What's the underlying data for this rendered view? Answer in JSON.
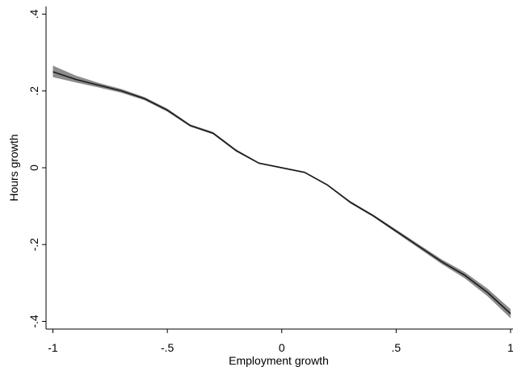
{
  "chart_data": {
    "type": "line",
    "x_label": "Employment growth",
    "y_label": "Hours growth",
    "x": [
      -1,
      -0.9,
      -0.8,
      -0.7,
      -0.6,
      -0.5,
      -0.4,
      -0.3,
      -0.2,
      -0.1,
      0,
      0.1,
      0.2,
      0.3,
      0.4,
      0.5,
      0.6,
      0.7,
      0.8,
      0.9,
      1
    ],
    "series": [
      {
        "color": "#1a1a1a",
        "values": [
          0.25,
          0.23,
          0.215,
          0.2,
          0.18,
          0.15,
          0.11,
          0.09,
          0.045,
          0.012,
          0,
          -0.012,
          -0.045,
          -0.09,
          -0.125,
          -0.165,
          -0.205,
          -0.245,
          -0.28,
          -0.325,
          -0.38
        ]
      }
    ],
    "band": {
      "color": "#8c8c8c",
      "lower": [
        0.236,
        0.222,
        0.209,
        0.195,
        0.176,
        0.146,
        0.107,
        0.087,
        0.042,
        0.01,
        -0.002,
        -0.014,
        -0.047,
        -0.093,
        -0.128,
        -0.169,
        -0.21,
        -0.251,
        -0.288,
        -0.335,
        -0.392
      ],
      "upper": [
        0.266,
        0.24,
        0.221,
        0.205,
        0.184,
        0.154,
        0.113,
        0.093,
        0.048,
        0.014,
        0.002,
        -0.01,
        -0.043,
        -0.087,
        -0.122,
        -0.161,
        -0.2,
        -0.239,
        -0.272,
        -0.315,
        -0.368
      ]
    },
    "xlim": [
      -1.03,
      1
    ],
    "ylim": [
      -0.42,
      0.42
    ],
    "xticks": [
      {
        "value": -1,
        "label": "-1"
      },
      {
        "value": -0.5,
        "label": "-.5"
      },
      0,
      {
        "value": 0.5,
        "label": ".5"
      },
      1
    ],
    "yticks": [
      {
        "value": -0.4,
        "label": "-.4"
      },
      {
        "value": -0.2,
        "label": "-.2"
      },
      0,
      {
        "value": 0.2,
        "label": ".2"
      },
      {
        "value": 0.4,
        "label": ".4"
      }
    ],
    "grid": false
  }
}
